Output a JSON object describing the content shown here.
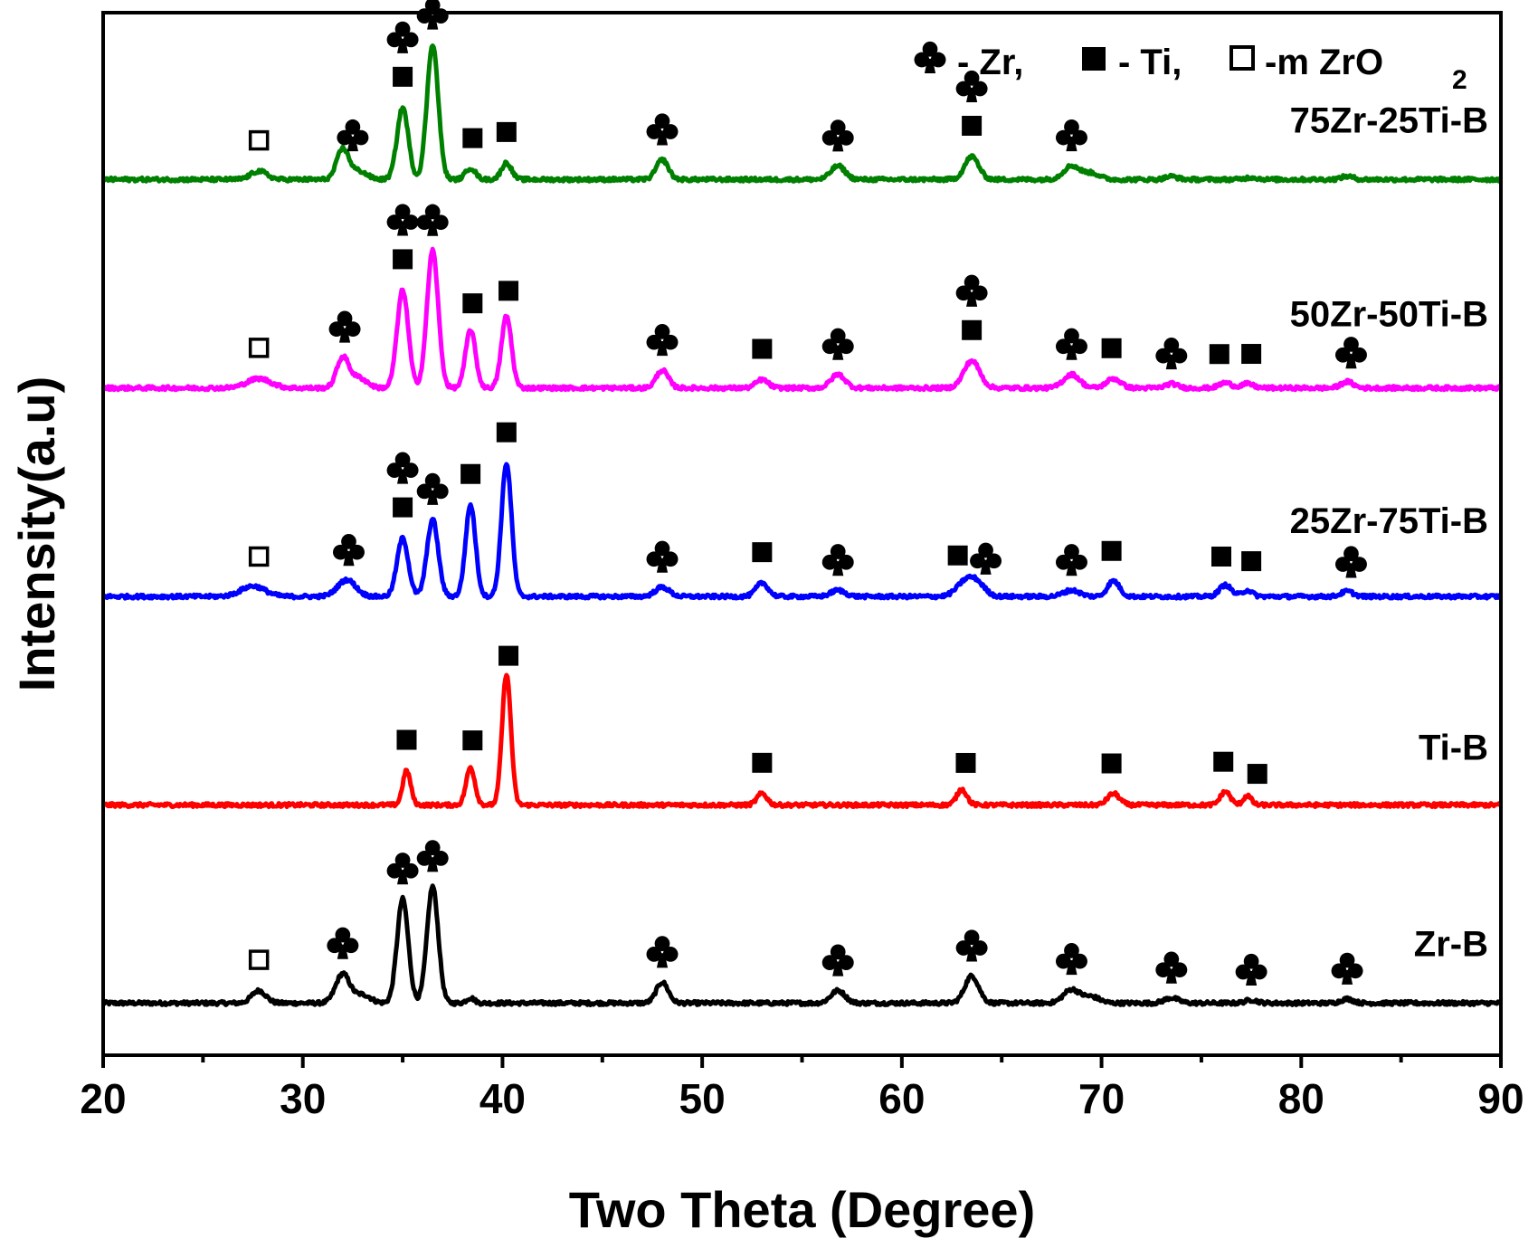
{
  "chart_data": {
    "type": "line",
    "xlabel": "Two Theta (Degree)",
    "ylabel": "Intensity(a.u)",
    "xlim": [
      20,
      90
    ],
    "ylim": [
      0,
      100
    ],
    "xticks": [
      20,
      30,
      40,
      50,
      60,
      70,
      80,
      90
    ],
    "xtick_labels": [
      "20",
      "30",
      "40",
      "50",
      "60",
      "70",
      "80",
      "90"
    ],
    "grid": false,
    "legend": {
      "position": "top-right",
      "entries": [
        {
          "marker": "club",
          "symbol": "♣",
          "label": "- Zr,"
        },
        {
          "marker": "filled-square",
          "symbol": "■",
          "label": "- Ti,"
        },
        {
          "marker": "open-square",
          "symbol": "□",
          "label": "-m ZrO",
          "subscript": "2"
        }
      ]
    },
    "series": [
      {
        "name": "Zr-B",
        "label": "Zr-B",
        "color": "#000000",
        "baseline": 5,
        "peaks": [
          [
            27.8,
            1.2,
            0.35
          ],
          [
            32.0,
            2.8,
            0.35
          ],
          [
            33.0,
            0.8,
            0.4
          ],
          [
            35.0,
            10.0,
            0.28
          ],
          [
            36.5,
            11.2,
            0.28
          ],
          [
            38.4,
            0.5,
            0.2
          ],
          [
            48.0,
            2.0,
            0.3
          ],
          [
            56.8,
            1.2,
            0.35
          ],
          [
            63.5,
            2.6,
            0.35
          ],
          [
            68.5,
            1.3,
            0.4
          ],
          [
            69.5,
            0.6,
            0.4
          ],
          [
            73.5,
            0.5,
            0.35
          ],
          [
            77.5,
            0.3,
            0.3
          ],
          [
            82.3,
            0.4,
            0.3
          ]
        ],
        "markers": [
          {
            "x": 27.8,
            "type": "open-square",
            "row": 0
          },
          {
            "x": 32.0,
            "type": "club",
            "row": 0
          },
          {
            "x": 35.0,
            "type": "club",
            "row": 0
          },
          {
            "x": 36.5,
            "type": "club",
            "row": 0
          },
          {
            "x": 48.0,
            "type": "club",
            "row": 0
          },
          {
            "x": 56.8,
            "type": "club",
            "row": 0
          },
          {
            "x": 63.5,
            "type": "club",
            "row": 0
          },
          {
            "x": 68.5,
            "type": "club",
            "row": 0
          },
          {
            "x": 73.5,
            "type": "club",
            "row": 0
          },
          {
            "x": 77.5,
            "type": "club",
            "row": 0
          },
          {
            "x": 82.3,
            "type": "club",
            "row": 0
          }
        ]
      },
      {
        "name": "Ti-B",
        "label": "Ti-B",
        "color": "#ff0000",
        "baseline": 24,
        "peaks": [
          [
            35.2,
            3.3,
            0.2
          ],
          [
            38.4,
            3.6,
            0.22
          ],
          [
            40.2,
            12.6,
            0.22
          ],
          [
            53.0,
            1.1,
            0.25
          ],
          [
            63.0,
            1.5,
            0.25
          ],
          [
            70.6,
            1.1,
            0.3
          ],
          [
            76.2,
            1.3,
            0.25
          ],
          [
            77.3,
            0.9,
            0.2
          ]
        ],
        "markers": [
          {
            "x": 35.2,
            "type": "filled-square",
            "row": 0
          },
          {
            "x": 38.5,
            "type": "filled-square",
            "row": 0
          },
          {
            "x": 40.3,
            "type": "filled-square",
            "row": 0
          },
          {
            "x": 53.0,
            "type": "filled-square",
            "row": 0
          },
          {
            "x": 63.2,
            "type": "filled-square",
            "row": 0
          },
          {
            "x": 70.5,
            "type": "filled-square",
            "row": 0
          },
          {
            "x": 76.1,
            "type": "filled-square",
            "row": 0
          },
          {
            "x": 77.8,
            "type": "filled-square",
            "row": 0
          }
        ]
      },
      {
        "name": "25Zr-75Ti-B",
        "label": "25Zr-75Ti-B",
        "color": "#0000ff",
        "baseline": 44,
        "peaks": [
          [
            27.5,
            1.0,
            0.6
          ],
          [
            32.2,
            1.6,
            0.45
          ],
          [
            35.0,
            5.6,
            0.28
          ],
          [
            36.5,
            7.4,
            0.28
          ],
          [
            38.4,
            8.8,
            0.25
          ],
          [
            40.2,
            12.8,
            0.25
          ],
          [
            48.0,
            0.9,
            0.35
          ],
          [
            53.0,
            1.3,
            0.3
          ],
          [
            56.8,
            0.6,
            0.35
          ],
          [
            63.2,
            1.4,
            0.45
          ],
          [
            63.8,
            1.0,
            0.4
          ],
          [
            68.5,
            0.6,
            0.4
          ],
          [
            70.6,
            1.5,
            0.3
          ],
          [
            76.2,
            1.1,
            0.3
          ],
          [
            77.3,
            0.6,
            0.25
          ],
          [
            82.3,
            0.5,
            0.3
          ]
        ],
        "markers": [
          {
            "x": 27.8,
            "type": "open-square",
            "row": 0
          },
          {
            "x": 32.3,
            "type": "club",
            "row": 0
          },
          {
            "x": 35.0,
            "type": "filled-square",
            "row": 0
          },
          {
            "x": 35.0,
            "type": "club",
            "row": 1
          },
          {
            "x": 36.5,
            "type": "club",
            "row": 0
          },
          {
            "x": 38.4,
            "type": "filled-square",
            "row": 0
          },
          {
            "x": 40.2,
            "type": "filled-square",
            "row": 0
          },
          {
            "x": 48.0,
            "type": "club",
            "row": 0
          },
          {
            "x": 53.0,
            "type": "filled-square",
            "row": 0
          },
          {
            "x": 56.8,
            "type": "club",
            "row": 0
          },
          {
            "x": 62.8,
            "type": "filled-square",
            "row": 0
          },
          {
            "x": 64.2,
            "type": "club",
            "row": 0
          },
          {
            "x": 68.5,
            "type": "club",
            "row": 0
          },
          {
            "x": 70.5,
            "type": "filled-square",
            "row": 0
          },
          {
            "x": 76.0,
            "type": "filled-square",
            "row": 0
          },
          {
            "x": 77.5,
            "type": "filled-square",
            "row": 0
          },
          {
            "x": 82.5,
            "type": "club",
            "row": 0
          }
        ]
      },
      {
        "name": "50Zr-50Ti-B",
        "label": "50Zr-50Ti-B",
        "color": "#ff00ff",
        "baseline": 64,
        "peaks": [
          [
            27.8,
            0.9,
            0.6
          ],
          [
            32.0,
            2.9,
            0.3
          ],
          [
            32.8,
            1.0,
            0.4
          ],
          [
            35.0,
            9.4,
            0.28
          ],
          [
            36.5,
            13.2,
            0.28
          ],
          [
            38.4,
            5.6,
            0.25
          ],
          [
            40.2,
            6.9,
            0.25
          ],
          [
            48.0,
            1.7,
            0.3
          ],
          [
            53.0,
            0.8,
            0.3
          ],
          [
            56.8,
            1.3,
            0.35
          ],
          [
            63.5,
            2.6,
            0.4
          ],
          [
            68.5,
            1.3,
            0.4
          ],
          [
            70.6,
            0.9,
            0.35
          ],
          [
            73.5,
            0.4,
            0.3
          ],
          [
            76.2,
            0.5,
            0.3
          ],
          [
            77.3,
            0.4,
            0.3
          ],
          [
            82.3,
            0.6,
            0.3
          ]
        ],
        "markers": [
          {
            "x": 27.8,
            "type": "open-square",
            "row": 0
          },
          {
            "x": 32.1,
            "type": "club",
            "row": 0
          },
          {
            "x": 35.0,
            "type": "filled-square",
            "row": 0
          },
          {
            "x": 35.0,
            "type": "club",
            "row": 1
          },
          {
            "x": 36.5,
            "type": "club",
            "row": 0
          },
          {
            "x": 38.5,
            "type": "filled-square",
            "row": 0
          },
          {
            "x": 40.3,
            "type": "filled-square",
            "row": 0
          },
          {
            "x": 48.0,
            "type": "club",
            "row": 0
          },
          {
            "x": 53.0,
            "type": "filled-square",
            "row": 0
          },
          {
            "x": 56.8,
            "type": "club",
            "row": 0
          },
          {
            "x": 63.5,
            "type": "filled-square",
            "row": 0
          },
          {
            "x": 63.5,
            "type": "club",
            "row": 1
          },
          {
            "x": 68.5,
            "type": "club",
            "row": 0
          },
          {
            "x": 70.5,
            "type": "filled-square",
            "row": 0
          },
          {
            "x": 73.5,
            "type": "club",
            "row": 0
          },
          {
            "x": 75.9,
            "type": "filled-square",
            "row": 0
          },
          {
            "x": 77.5,
            "type": "filled-square",
            "row": 0
          },
          {
            "x": 82.5,
            "type": "club",
            "row": 0
          }
        ]
      },
      {
        "name": "75Zr-25Ti-B",
        "label": "75Zr-25Ti-B",
        "color": "#008000",
        "baseline": 84,
        "peaks": [
          [
            27.8,
            0.8,
            0.4
          ],
          [
            32.0,
            2.9,
            0.3
          ],
          [
            32.8,
            0.8,
            0.4
          ],
          [
            35.0,
            6.9,
            0.28
          ],
          [
            36.5,
            13.0,
            0.28
          ],
          [
            38.4,
            1.1,
            0.25
          ],
          [
            40.2,
            1.6,
            0.25
          ],
          [
            48.0,
            1.9,
            0.3
          ],
          [
            56.8,
            1.3,
            0.35
          ],
          [
            63.5,
            2.2,
            0.35
          ],
          [
            68.5,
            1.3,
            0.4
          ],
          [
            69.5,
            0.6,
            0.4
          ],
          [
            73.5,
            0.3,
            0.3
          ],
          [
            77.5,
            0.2,
            0.3
          ],
          [
            82.3,
            0.3,
            0.3
          ]
        ],
        "markers": [
          {
            "x": 27.8,
            "type": "open-square",
            "row": 0
          },
          {
            "x": 32.5,
            "type": "club",
            "row": 0
          },
          {
            "x": 35.0,
            "type": "filled-square",
            "row": 0
          },
          {
            "x": 35.0,
            "type": "club",
            "row": 1
          },
          {
            "x": 36.5,
            "type": "club",
            "row": 0
          },
          {
            "x": 38.5,
            "type": "filled-square",
            "row": 0
          },
          {
            "x": 40.2,
            "type": "filled-square",
            "row": 0
          },
          {
            "x": 48.0,
            "type": "club",
            "row": 0
          },
          {
            "x": 56.8,
            "type": "club",
            "row": 0
          },
          {
            "x": 63.5,
            "type": "filled-square",
            "row": 0
          },
          {
            "x": 63.5,
            "type": "club",
            "row": 1
          },
          {
            "x": 68.5,
            "type": "club",
            "row": 0
          }
        ]
      }
    ]
  }
}
